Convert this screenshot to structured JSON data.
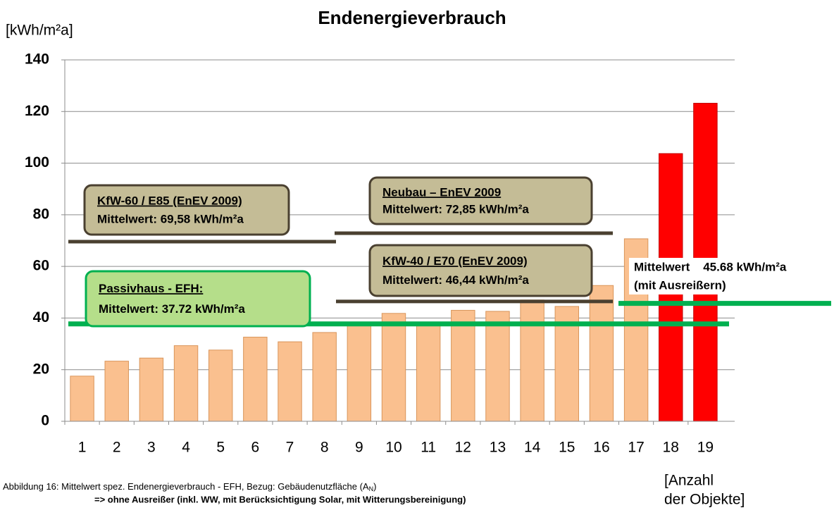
{
  "chart_data": {
    "type": "bar",
    "title": "Endenergieverbrauch",
    "y_label": "[kWh/m²a]",
    "x_label": [
      "[Anzahl",
      "der Objekte]"
    ],
    "categories": [
      "1",
      "2",
      "3",
      "4",
      "5",
      "6",
      "7",
      "8",
      "9",
      "10",
      "11",
      "12",
      "13",
      "14",
      "15",
      "16",
      "17",
      "18",
      "19"
    ],
    "values": [
      17.5,
      23.3,
      24.5,
      29.3,
      27.6,
      32.6,
      30.8,
      34.4,
      38,
      41.8,
      37,
      43,
      42.6,
      47,
      44.5,
      52.6,
      70.7,
      103.7,
      123.2
    ],
    "colors": [
      "#fac08f",
      "#fac08f",
      "#fac08f",
      "#fac08f",
      "#fac08f",
      "#fac08f",
      "#fac08f",
      "#fac08f",
      "#fac08f",
      "#fac08f",
      "#fac08f",
      "#fac08f",
      "#fac08f",
      "#fac08f",
      "#fac08f",
      "#fac08f",
      "#fac08f",
      "#ff0000",
      "#ff0000"
    ],
    "ylim": [
      0,
      140
    ],
    "yticks": [
      0,
      20,
      40,
      60,
      80,
      100,
      120,
      140
    ],
    "grid": true,
    "reference_lines": [
      {
        "value": 69.58,
        "color": "#4a4030",
        "title": "KfW-60 / E85 (EnEV 2009)",
        "label": "Mittelwert: 69,58 kWh/m²a"
      },
      {
        "value": 72.85,
        "color": "#4a4030",
        "title": "Neubau – EnEV 2009",
        "label": "Mittelwert: 72,85 kWh/m²a"
      },
      {
        "value": 46.44,
        "color": "#4a4030",
        "title": "KfW-40 / E70 (EnEV 2009)",
        "label": "Mittelwert: 46,44 kWh/m²a"
      },
      {
        "value": 37.72,
        "color": "#00b050",
        "title": "Passivhaus - EFH:",
        "label": "Mittelwert: 37.72 kWh/m²a"
      },
      {
        "value": 45.68,
        "color": "#00b050",
        "title": "Mittelwert    45.68 kWh/m²a",
        "label": "(mit Ausreißern)"
      }
    ],
    "caption": [
      "Abbildung 16: Mittelwert spez. Endenergieverbrauch - EFH, Bezug: Gebäudenutzfläche (A",
      "N",
      ")"
    ],
    "caption_line2": "=> ohne Ausreißer (inkl. WW, mit Berücksichtigung Solar, mit Witterungsbereinigung)"
  }
}
